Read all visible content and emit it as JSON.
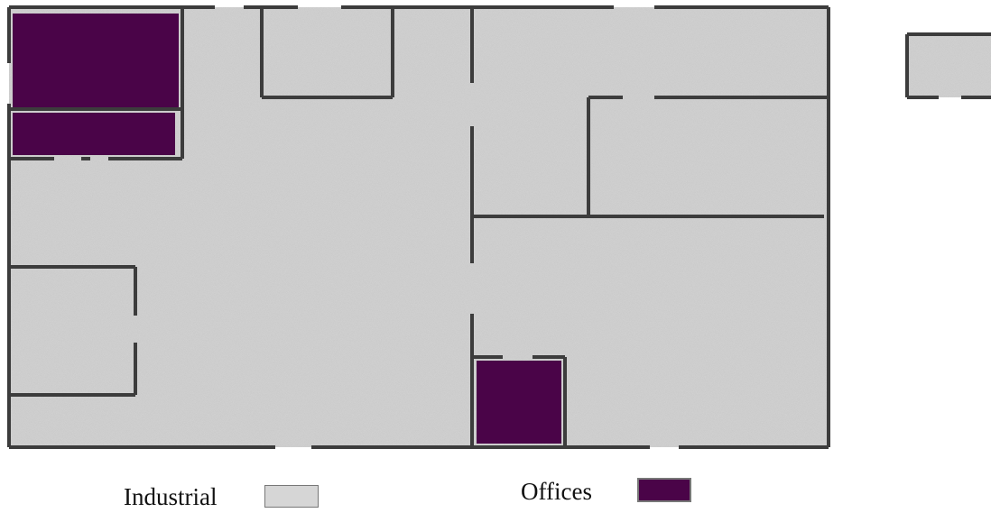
{
  "legend": {
    "industrial_label": "Industrial",
    "offices_label": "Offices"
  },
  "colors": {
    "industrial_fill": "#d6d6d6",
    "office_fill": "#4a0448",
    "wall": "#3c3c3c",
    "background": "#ffffff"
  }
}
